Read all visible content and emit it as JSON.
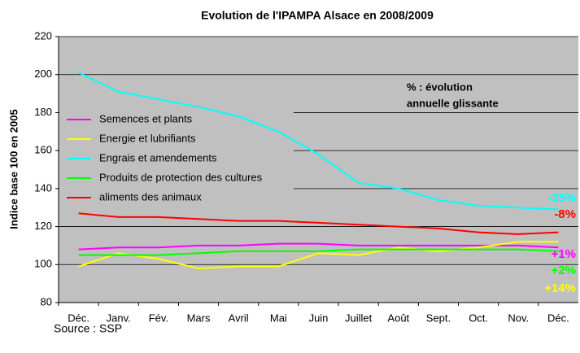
{
  "chart_data": {
    "type": "line",
    "title": "Evolution de l'IPAMPA Alsace en 2008/2009",
    "y_label": "Indice base 100 en 2005",
    "source": "Source :  SSP",
    "note": [
      "% : évolution",
      "annuelle glissante"
    ],
    "categories": [
      "Déc.",
      "Janv.",
      "Fév.",
      "Mars",
      "Avril",
      "Mai",
      "Juin",
      "Juillet",
      "Août",
      "Sept.",
      "Oct.",
      "Nov.",
      "Déc."
    ],
    "series": [
      {
        "name": "Semences et plants",
        "color": "#ff00ff",
        "values": [
          108,
          109,
          109,
          110,
          110,
          111,
          111,
          110,
          110,
          110,
          110,
          110,
          109
        ]
      },
      {
        "name": "Energie et lubrifiants",
        "color": "#ffff00",
        "values": [
          99,
          106,
          103,
          98,
          99,
          99,
          106,
          105,
          109,
          107,
          109,
          112,
          112
        ]
      },
      {
        "name": "Engrais et amendements",
        "color": "#00ffff",
        "values": [
          201,
          191,
          187,
          183,
          178,
          170,
          158,
          143,
          140,
          134,
          131,
          130,
          129
        ]
      },
      {
        "name": "Produits de protection des cultures",
        "color": "#00ff00",
        "values": [
          105,
          105,
          105,
          106,
          107,
          107,
          107,
          108,
          108,
          108,
          108,
          108,
          107
        ]
      },
      {
        "name": "aliments des animaux",
        "color": "#ff0000",
        "values": [
          127,
          125,
          125,
          124,
          123,
          123,
          122,
          121,
          120,
          119,
          117,
          116,
          117
        ]
      }
    ],
    "annotations": [
      {
        "text": "-35%",
        "color": "#00ffff"
      },
      {
        "text": "-8%",
        "color": "#ff0000"
      },
      {
        "text": "+1%",
        "color": "#ff00ff"
      },
      {
        "text": "+2%",
        "color": "#00ff00"
      },
      {
        "text": "+14%",
        "color": "#ffff00"
      }
    ],
    "ylim": [
      80,
      220
    ],
    "yticks": [
      80,
      100,
      120,
      140,
      160,
      180,
      200,
      220
    ],
    "grid": true
  }
}
